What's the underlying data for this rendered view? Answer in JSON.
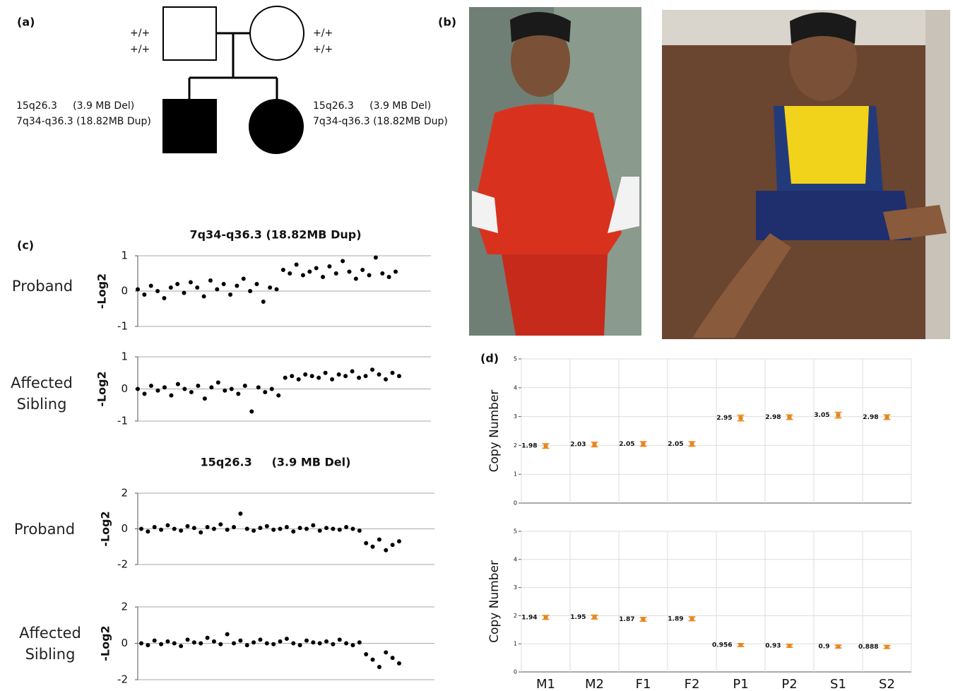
{
  "panels": {
    "a": "(a)",
    "b": "(b)",
    "c": "(c)",
    "d": "(d)"
  },
  "pedigree": {
    "father_genotype": [
      "+/+",
      "+/+"
    ],
    "mother_genotype": [
      "+/+",
      "+/+"
    ],
    "proband_variants": [
      "15q26.3     (3.9 MB Del)",
      "7q34-q36.3 (18.82MB Dup)"
    ],
    "sibling_variants": [
      "15q26.3     (3.9 MB Del)",
      "7q34-q36.3 (18.82MB Dup)"
    ]
  },
  "chart_data": [
    {
      "type": "scatter",
      "title": "7q34-q36.3 (18.82MB Dup)",
      "row_label": "Proband",
      "ylabel": "-Log2",
      "values": [
        0.05,
        -0.1,
        0.15,
        0.0,
        -0.2,
        0.1,
        0.2,
        -0.05,
        0.25,
        0.1,
        -0.15,
        0.3,
        0.05,
        0.2,
        -0.1,
        0.15,
        0.35,
        0.0,
        0.2,
        -0.3,
        0.1,
        0.05,
        0.6,
        0.5,
        0.75,
        0.45,
        0.55,
        0.65,
        0.4,
        0.7,
        0.5,
        0.85,
        0.55,
        0.35,
        0.6,
        0.45,
        0.95,
        0.5,
        0.4,
        0.55
      ],
      "ylim": [
        -1,
        1
      ],
      "yticks": [
        -1,
        0,
        1
      ],
      "grid": true,
      "color": "#000000"
    },
    {
      "type": "scatter",
      "row_label": "Affected Sibling",
      "ylabel": "-Log2",
      "values": [
        0.0,
        -0.15,
        0.1,
        -0.05,
        0.05,
        -0.2,
        0.15,
        0.0,
        -0.1,
        0.1,
        -0.3,
        0.05,
        0.2,
        -0.05,
        0.0,
        -0.15,
        0.1,
        -0.7,
        0.05,
        -0.1,
        0.0,
        -0.2,
        0.35,
        0.4,
        0.3,
        0.45,
        0.4,
        0.35,
        0.5,
        0.3,
        0.45,
        0.4,
        0.55,
        0.35,
        0.4,
        0.6,
        0.45,
        0.3,
        0.5,
        0.4
      ],
      "ylim": [
        -1,
        1
      ],
      "yticks": [
        -1,
        0,
        1
      ],
      "grid": true,
      "color": "#000000"
    },
    {
      "type": "scatter",
      "title": "15q26.3     (3.9 MB Del)",
      "row_label": "Proband",
      "ylabel": "-Log2",
      "values": [
        0.0,
        -0.15,
        0.1,
        -0.05,
        0.2,
        0.0,
        -0.1,
        0.15,
        0.05,
        -0.2,
        0.1,
        0.0,
        0.25,
        -0.05,
        0.1,
        0.85,
        0.0,
        -0.1,
        0.05,
        0.15,
        -0.05,
        0.0,
        0.1,
        -0.15,
        0.05,
        0.0,
        0.2,
        -0.1,
        0.05,
        0.0,
        -0.05,
        0.1,
        0.0,
        -0.1,
        -0.8,
        -1.0,
        -0.6,
        -1.2,
        -0.9,
        -0.7
      ],
      "ylim": [
        -2,
        2
      ],
      "yticks": [
        -2,
        0,
        2
      ],
      "grid": true,
      "color": "#000000"
    },
    {
      "type": "scatter",
      "row_label": "Affected Sibling",
      "ylabel": "-Log2",
      "values": [
        0.0,
        -0.1,
        0.15,
        -0.05,
        0.1,
        0.0,
        -0.15,
        0.2,
        0.05,
        0.0,
        0.3,
        0.1,
        -0.05,
        0.5,
        0.0,
        0.15,
        -0.1,
        0.05,
        0.2,
        0.0,
        -0.05,
        0.1,
        0.25,
        0.0,
        -0.1,
        0.15,
        0.05,
        0.0,
        0.1,
        -0.05,
        0.2,
        0.0,
        -0.1,
        0.05,
        -0.6,
        -0.9,
        -1.3,
        -0.5,
        -0.8,
        -1.1
      ],
      "ylim": [
        -2,
        2
      ],
      "yticks": [
        -2,
        0,
        2
      ],
      "grid": true,
      "color": "#000000"
    },
    {
      "type": "errorbar",
      "ylabel": "Copy Number",
      "values": [
        1.98,
        2.03,
        2.05,
        2.05,
        2.95,
        2.98,
        3.05,
        2.98
      ],
      "errors": [
        0.08,
        0.08,
        0.08,
        0.08,
        0.1,
        0.08,
        0.1,
        0.08
      ],
      "ylim": [
        0,
        5
      ],
      "yticks": [
        0,
        1,
        2,
        3,
        4,
        5
      ],
      "grid": true,
      "color": "#e8871e"
    },
    {
      "type": "errorbar",
      "ylabel": "Copy Number",
      "categories": [
        "M1",
        "M2",
        "F1",
        "F2",
        "P1",
        "P2",
        "S1",
        "S2"
      ],
      "values": [
        1.94,
        1.95,
        1.87,
        1.89,
        0.956,
        0.93,
        0.9,
        0.888
      ],
      "errors": [
        0.07,
        0.07,
        0.07,
        0.07,
        0.05,
        0.05,
        0.05,
        0.05
      ],
      "ylim": [
        0,
        5
      ],
      "yticks": [
        0,
        1,
        2,
        3,
        4,
        5
      ],
      "grid": true,
      "color": "#e8871e"
    }
  ]
}
